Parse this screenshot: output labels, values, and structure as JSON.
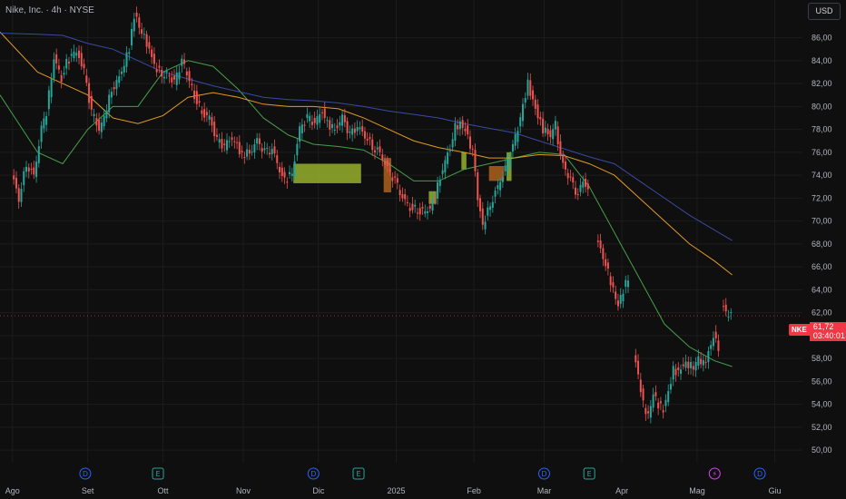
{
  "header": {
    "title": "Nike, Inc. · 4h · NYSE",
    "currency": "USD"
  },
  "price_tag": {
    "symbol": "NKE",
    "price": "61,72",
    "countdown": "03:40:01"
  },
  "colors": {
    "up": "#26a69a",
    "down": "#ef5350",
    "ma_fast": "#4caf50",
    "ma_mid": "#f9a825",
    "ma_slow": "#3f51b5",
    "accent": "#f23645"
  },
  "chart_data": {
    "type": "line",
    "y_ticks": [
      "50,00",
      "52,00",
      "54,00",
      "56,00",
      "58,00",
      "60,00",
      "62,00",
      "64,00",
      "66,00",
      "68,00",
      "70,00",
      "72,00",
      "74,00",
      "76,00",
      "78,00",
      "80,00",
      "82,00",
      "84,00",
      "86,00"
    ],
    "ylim": [
      49.3,
      88.5
    ],
    "x_ticks": [
      {
        "label": "Ago",
        "x": 0
      },
      {
        "label": "Set",
        "x": 30
      },
      {
        "label": "Ott",
        "x": 60
      },
      {
        "label": "Nov",
        "x": 92
      },
      {
        "label": "Dic",
        "x": 122
      },
      {
        "label": "2025",
        "x": 153
      },
      {
        "label": "Feb",
        "x": 184
      },
      {
        "label": "Mar",
        "x": 212
      },
      {
        "label": "Apr",
        "x": 243
      },
      {
        "label": "Mag",
        "x": 273
      },
      {
        "label": "Giu",
        "x": 304
      }
    ],
    "xlim": [
      -5,
      315
    ],
    "event_markers": [
      {
        "label": "D",
        "x": 29,
        "color": "#2962ff"
      },
      {
        "label": "E",
        "x": 58,
        "color": "#26a69a"
      },
      {
        "label": "D",
        "x": 120,
        "color": "#2962ff"
      },
      {
        "label": "E",
        "x": 138,
        "color": "#26a69a"
      },
      {
        "label": "D",
        "x": 212,
        "color": "#2962ff"
      },
      {
        "label": "E",
        "x": 230,
        "color": "#26a69a"
      },
      {
        "label": "⚡",
        "x": 280,
        "color": "#e040fb"
      },
      {
        "label": "D",
        "x": 298,
        "color": "#2962ff"
      }
    ],
    "price_path": [
      [
        0,
        74.2
      ],
      [
        3,
        72.0
      ],
      [
        6,
        75.0
      ],
      [
        9,
        74.0
      ],
      [
        12,
        78.0
      ],
      [
        14,
        79.5
      ],
      [
        17,
        84.2
      ],
      [
        20,
        82.5
      ],
      [
        22,
        83.8
      ],
      [
        26,
        85.0
      ],
      [
        29,
        83.0
      ],
      [
        32,
        79.5
      ],
      [
        35,
        78.0
      ],
      [
        37,
        79.0
      ],
      [
        40,
        81.5
      ],
      [
        43,
        82.5
      ],
      [
        47,
        85.0
      ],
      [
        49,
        88.0
      ],
      [
        55,
        85.0
      ],
      [
        57,
        83.5
      ],
      [
        60,
        82.8
      ],
      [
        62,
        83.0
      ],
      [
        65,
        82.0
      ],
      [
        68,
        84.0
      ],
      [
        70,
        82.8
      ],
      [
        73,
        81.0
      ],
      [
        76,
        79.5
      ],
      [
        79,
        79.0
      ],
      [
        82,
        77.0
      ],
      [
        85,
        76.5
      ],
      [
        88,
        77.3
      ],
      [
        92,
        75.8
      ],
      [
        95,
        76.0
      ],
      [
        98,
        77.0
      ],
      [
        101,
        76.0
      ],
      [
        104,
        76.2
      ],
      [
        107,
        74.5
      ],
      [
        109,
        73.5
      ],
      [
        112,
        74.2
      ],
      [
        115,
        78.0
      ],
      [
        118,
        79.0
      ],
      [
        121,
        78.5
      ],
      [
        124,
        79.7
      ],
      [
        126,
        78.5
      ],
      [
        129,
        78.0
      ],
      [
        132,
        79.0
      ],
      [
        135,
        77.5
      ],
      [
        138,
        78.2
      ],
      [
        141,
        77.5
      ],
      [
        144,
        76.5
      ],
      [
        147,
        76.0
      ],
      [
        150,
        74.5
      ],
      [
        153,
        73.5
      ],
      [
        156,
        72.0
      ],
      [
        159,
        71.2
      ],
      [
        162,
        71.0
      ],
      [
        165,
        70.8
      ],
      [
        167,
        71.2
      ],
      [
        169,
        72.3
      ],
      [
        172,
        74.5
      ],
      [
        175,
        76.5
      ],
      [
        177,
        78.2
      ],
      [
        179,
        78.5
      ],
      [
        181,
        78.0
      ],
      [
        184,
        76.0
      ],
      [
        186,
        72.0
      ],
      [
        188,
        69.5
      ],
      [
        191,
        71.5
      ],
      [
        194,
        73.0
      ],
      [
        197,
        74.5
      ],
      [
        200,
        76.5
      ],
      [
        202,
        78.0
      ],
      [
        204,
        80.0
      ],
      [
        206,
        82.0
      ],
      [
        208,
        80.5
      ],
      [
        210,
        79.2
      ],
      [
        212,
        78.0
      ],
      [
        215,
        77.5
      ],
      [
        217,
        78.5
      ],
      [
        218,
        77.0
      ],
      [
        220,
        75.0
      ],
      [
        223,
        73.5
      ],
      [
        226,
        72.2
      ],
      [
        228,
        73.5
      ],
      [
        230,
        72.5
      ]
    ],
    "price_path_2": [
      [
        233,
        68.5
      ],
      [
        236,
        67.0
      ],
      [
        238,
        65.5
      ],
      [
        240,
        64.0
      ],
      [
        242,
        62.7
      ],
      [
        244,
        64.0
      ],
      [
        246,
        65.0
      ]
    ],
    "price_path_3": [
      [
        248,
        58.5
      ],
      [
        250,
        56.5
      ],
      [
        252,
        54.0
      ],
      [
        254,
        53.0
      ],
      [
        256,
        55.0
      ],
      [
        258,
        54.0
      ],
      [
        260,
        53.5
      ],
      [
        262,
        55.0
      ],
      [
        264,
        57.0
      ],
      [
        266,
        56.8
      ],
      [
        268,
        57.5
      ],
      [
        270,
        57.5
      ],
      [
        272,
        57.2
      ],
      [
        274,
        58.0
      ],
      [
        276,
        57.5
      ],
      [
        278,
        58.5
      ],
      [
        280,
        60.0
      ],
      [
        282,
        59.0
      ]
    ],
    "price_path_4": [
      [
        283,
        62.8
      ],
      [
        285,
        62.0
      ],
      [
        287,
        61.7
      ]
    ],
    "ma_fast_path": [
      [
        -5,
        81
      ],
      [
        10,
        76
      ],
      [
        20,
        75
      ],
      [
        30,
        78
      ],
      [
        40,
        80
      ],
      [
        50,
        80
      ],
      [
        60,
        83
      ],
      [
        70,
        84
      ],
      [
        80,
        83.5
      ],
      [
        90,
        81.5
      ],
      [
        100,
        79
      ],
      [
        110,
        77.5
      ],
      [
        120,
        76.7
      ],
      [
        130,
        76.5
      ],
      [
        140,
        76.2
      ],
      [
        150,
        75
      ],
      [
        160,
        73.5
      ],
      [
        170,
        73.5
      ],
      [
        180,
        74.5
      ],
      [
        190,
        75
      ],
      [
        200,
        75.5
      ],
      [
        210,
        76
      ],
      [
        220,
        75.8
      ],
      [
        230,
        73
      ],
      [
        240,
        69
      ],
      [
        250,
        65
      ],
      [
        260,
        61
      ],
      [
        270,
        59
      ],
      [
        280,
        57.8
      ],
      [
        287,
        57.3
      ]
    ],
    "ma_mid_path": [
      [
        -5,
        86.5
      ],
      [
        10,
        83
      ],
      [
        20,
        82
      ],
      [
        30,
        81
      ],
      [
        40,
        79
      ],
      [
        50,
        78.5
      ],
      [
        60,
        79.2
      ],
      [
        70,
        80.8
      ],
      [
        80,
        81.2
      ],
      [
        90,
        80.8
      ],
      [
        100,
        80.2
      ],
      [
        110,
        80
      ],
      [
        120,
        80
      ],
      [
        130,
        79.8
      ],
      [
        140,
        79
      ],
      [
        150,
        78
      ],
      [
        160,
        77
      ],
      [
        170,
        76.4
      ],
      [
        180,
        76
      ],
      [
        190,
        75.5
      ],
      [
        200,
        75.5
      ],
      [
        210,
        75.8
      ],
      [
        220,
        75.7
      ],
      [
        230,
        75
      ],
      [
        240,
        74
      ],
      [
        250,
        72
      ],
      [
        260,
        70
      ],
      [
        270,
        68
      ],
      [
        280,
        66.5
      ],
      [
        287,
        65.3
      ]
    ],
    "ma_slow_path": [
      [
        -5,
        86.4
      ],
      [
        10,
        86.3
      ],
      [
        20,
        86.2
      ],
      [
        30,
        85.5
      ],
      [
        40,
        85
      ],
      [
        50,
        84
      ],
      [
        60,
        83
      ],
      [
        70,
        82.4
      ],
      [
        80,
        81.8
      ],
      [
        90,
        81.3
      ],
      [
        100,
        80.8
      ],
      [
        110,
        80.6
      ],
      [
        120,
        80.5
      ],
      [
        130,
        80.3
      ],
      [
        140,
        80
      ],
      [
        150,
        79.6
      ],
      [
        160,
        79.3
      ],
      [
        170,
        79
      ],
      [
        180,
        78.5
      ],
      [
        190,
        78.1
      ],
      [
        200,
        77.7
      ],
      [
        210,
        77
      ],
      [
        220,
        76.3
      ],
      [
        230,
        75.6
      ],
      [
        240,
        75
      ],
      [
        250,
        73.5
      ],
      [
        260,
        72
      ],
      [
        270,
        70.5
      ],
      [
        280,
        69.2
      ],
      [
        287,
        68.3
      ]
    ],
    "zones": [
      {
        "x0": 112,
        "x1": 139,
        "y0": 73.3,
        "y1": 75.0,
        "color": "#9dba2e"
      },
      {
        "x0": 166,
        "x1": 169,
        "y0": 71.5,
        "y1": 72.6,
        "color": "#9dba2e"
      },
      {
        "x0": 179,
        "x1": 181,
        "y0": 74.5,
        "y1": 76.0,
        "color": "#9dba2e"
      },
      {
        "x0": 190,
        "x1": 196,
        "y0": 73.5,
        "y1": 74.8,
        "color": "#b5651d"
      },
      {
        "x0": 197,
        "x1": 199,
        "y0": 73.5,
        "y1": 76.0,
        "color": "#9dba2e"
      },
      {
        "x0": 148,
        "x1": 151,
        "y0": 72.5,
        "y1": 75.5,
        "color": "#b5651d"
      }
    ],
    "current_price": 61.72
  }
}
